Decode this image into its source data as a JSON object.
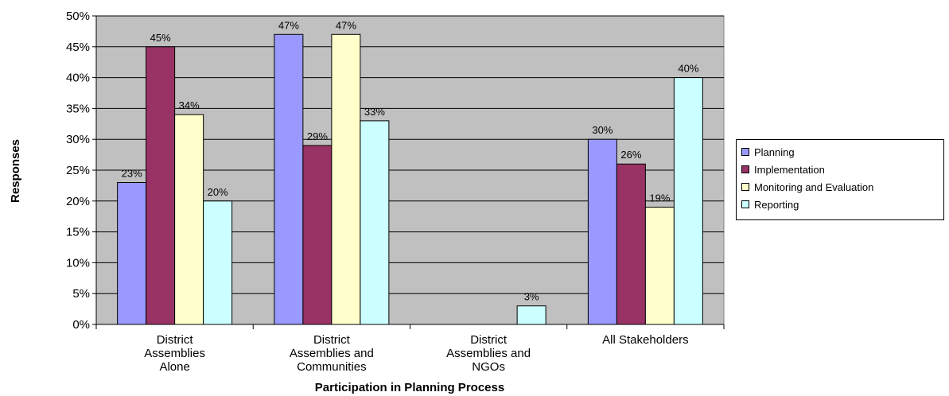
{
  "chart_data": {
    "type": "bar",
    "title": "",
    "xlabel": "Participation in Planning Process",
    "ylabel": "Responses",
    "ylim": [
      0,
      50
    ],
    "yticks": [
      "0%",
      "5%",
      "10%",
      "15%",
      "20%",
      "25%",
      "30%",
      "35%",
      "40%",
      "45%",
      "50%"
    ],
    "grid": true,
    "legend_position": "right",
    "categories": [
      [
        "District",
        "Assemblies",
        "Alone"
      ],
      [
        "District",
        "Assemblies and",
        "Communities"
      ],
      [
        "District",
        "Assemblies and",
        "NGOs"
      ],
      [
        "All Stakeholders"
      ]
    ],
    "series": [
      {
        "name": "Planning",
        "color": "#9999ff",
        "values": [
          23,
          47,
          null,
          30
        ],
        "labels": [
          "23%",
          "47%",
          "",
          "30%"
        ]
      },
      {
        "name": "Implementation",
        "color": "#993366",
        "values": [
          45,
          29,
          null,
          26
        ],
        "labels": [
          "45%",
          "29%",
          "",
          "26%"
        ]
      },
      {
        "name": "Monitoring and Evaluation",
        "color": "#ffffcc",
        "values": [
          34,
          47,
          null,
          19
        ],
        "labels": [
          "34%",
          "47%",
          "",
          "19%"
        ]
      },
      {
        "name": "Reporting",
        "color": "#ccffff",
        "values": [
          20,
          33,
          3,
          40
        ],
        "labels": [
          "20%",
          "33%",
          "3%",
          "40%"
        ]
      }
    ],
    "plot_background": "#c0c0c0"
  }
}
